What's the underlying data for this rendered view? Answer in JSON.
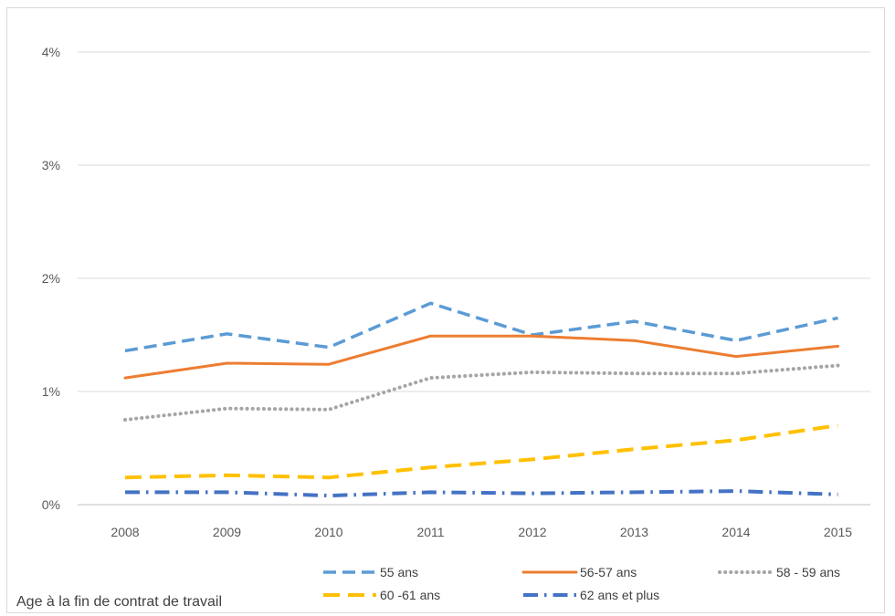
{
  "chart_data": {
    "type": "line",
    "categories": [
      "2008",
      "2009",
      "2010",
      "2011",
      "2012",
      "2013",
      "2014",
      "2015"
    ],
    "ylim": [
      0,
      4
    ],
    "yticks": [
      0,
      1,
      2,
      3,
      4
    ],
    "ytick_labels": [
      "0%",
      "1%",
      "2%",
      "3%",
      "4%"
    ],
    "grid": true,
    "legend_title": "Age à la fin de contrat de travail",
    "legend_position": "bottom",
    "series": [
      {
        "name": "55 ans",
        "values": [
          1.36,
          1.51,
          1.39,
          1.78,
          1.5,
          1.62,
          1.45,
          1.65
        ],
        "color": "#5b9bd5",
        "style": "dashed"
      },
      {
        "name": "56-57 ans",
        "values": [
          1.12,
          1.25,
          1.24,
          1.49,
          1.49,
          1.45,
          1.31,
          1.4
        ],
        "color": "#ed7d31",
        "style": "solid"
      },
      {
        "name": "58 - 59 ans",
        "values": [
          0.75,
          0.85,
          0.84,
          1.12,
          1.17,
          1.16,
          1.16,
          1.23
        ],
        "color": "#a5a5a5",
        "style": "dotted"
      },
      {
        "name": "60 -61 ans",
        "values": [
          0.24,
          0.26,
          0.24,
          0.33,
          0.4,
          0.49,
          0.57,
          0.7
        ],
        "color": "#ffc000",
        "style": "longdash"
      },
      {
        "name": "62 ans et plus",
        "values": [
          0.11,
          0.11,
          0.08,
          0.11,
          0.1,
          0.11,
          0.12,
          0.09
        ],
        "color": "#4472c4",
        "style": "dashdot"
      }
    ]
  }
}
